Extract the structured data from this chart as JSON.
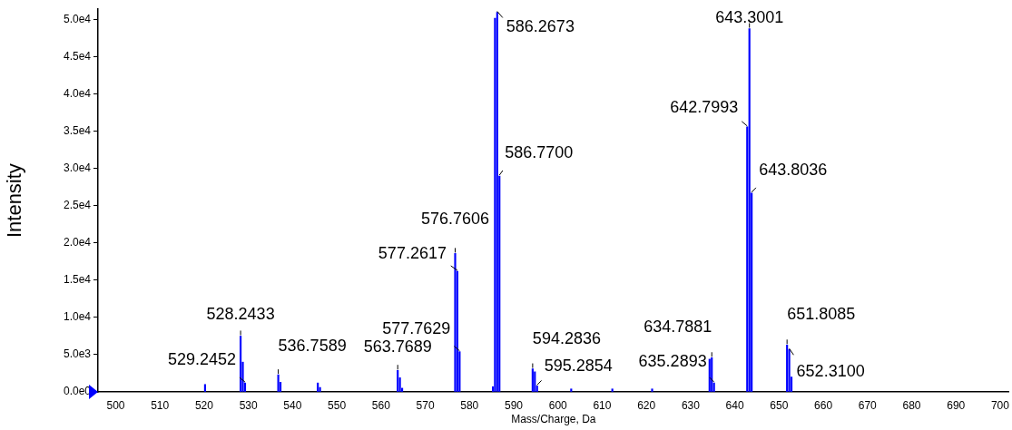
{
  "chart_data": {
    "type": "bar",
    "xlabel": "Mass/Charge, Da",
    "ylabel": "Intensity",
    "x": [
      520.2,
      528.2433,
      528.74,
      529.2452,
      536.7589,
      537.26,
      545.7,
      546.2,
      563.7689,
      564.27,
      564.77,
      576.7606,
      577.2617,
      577.7629,
      585.3,
      585.77,
      586.2673,
      586.77,
      594.2836,
      594.78,
      595.2854,
      603.0,
      612.3,
      621.3,
      634.29,
      634.7881,
      635.2893,
      642.7993,
      643.3001,
      643.8036,
      651.8085,
      652.31,
      652.81
    ],
    "values": [
      1000,
      7500,
      4000,
      1200,
      2300,
      1300,
      1200,
      600,
      2900,
      1900,
      500,
      18600,
      16200,
      5400,
      700,
      50200,
      51000,
      29000,
      3100,
      2700,
      800,
      400,
      400,
      400,
      4400,
      4600,
      1200,
      35600,
      48800,
      26700,
      6300,
      5700,
      2000
    ],
    "color": "#0000ff",
    "annotations": [
      {
        "text": "528.2433",
        "x": 528.2433,
        "y": 7500
      },
      {
        "text": "529.2452",
        "x": 529.2452,
        "y": 1200
      },
      {
        "text": "536.7589",
        "x": 536.7589,
        "y": 2300
      },
      {
        "text": "563.7689",
        "x": 563.7689,
        "y": 2900
      },
      {
        "text": "576.7606",
        "x": 576.7606,
        "y": 18600
      },
      {
        "text": "577.2617",
        "x": 577.2617,
        "y": 16200
      },
      {
        "text": "577.7629",
        "x": 577.7629,
        "y": 5400
      },
      {
        "text": "586.2673",
        "x": 586.2673,
        "y": 51000
      },
      {
        "text": "586.7700",
        "x": 586.77,
        "y": 29000
      },
      {
        "text": "594.2836",
        "x": 594.2836,
        "y": 3100
      },
      {
        "text": "595.2854",
        "x": 595.2854,
        "y": 800
      },
      {
        "text": "634.7881",
        "x": 634.7881,
        "y": 4600
      },
      {
        "text": "635.2893",
        "x": 635.2893,
        "y": 1200
      },
      {
        "text": "642.7993",
        "x": 642.7993,
        "y": 35600
      },
      {
        "text": "643.3001",
        "x": 643.3001,
        "y": 48800
      },
      {
        "text": "643.8036",
        "x": 643.8036,
        "y": 26700
      },
      {
        "text": "651.8085",
        "x": 651.8085,
        "y": 6300
      },
      {
        "text": "652.3100",
        "x": 652.31,
        "y": 5700
      }
    ],
    "xlim": [
      496,
      702
    ],
    "xticks": [
      500,
      510,
      520,
      530,
      540,
      550,
      560,
      570,
      580,
      590,
      600,
      610,
      620,
      630,
      640,
      650,
      660,
      670,
      680,
      690,
      700
    ],
    "ylim": [
      0,
      51400
    ],
    "yticks": [
      {
        "value": 0,
        "label": "0.0e0"
      },
      {
        "value": 5000,
        "label": "5.0e3"
      },
      {
        "value": 10000,
        "label": "1.0e4"
      },
      {
        "value": 15000,
        "label": "1.5e4"
      },
      {
        "value": 20000,
        "label": "2.0e4"
      },
      {
        "value": 25000,
        "label": "2.5e4"
      },
      {
        "value": 30000,
        "label": "3.0e4"
      },
      {
        "value": 35000,
        "label": "3.5e4"
      },
      {
        "value": 40000,
        "label": "4.0e4"
      },
      {
        "value": 45000,
        "label": "4.5e4"
      },
      {
        "value": 50000,
        "label": "5.0e4"
      }
    ],
    "grid": false,
    "legend": false
  }
}
